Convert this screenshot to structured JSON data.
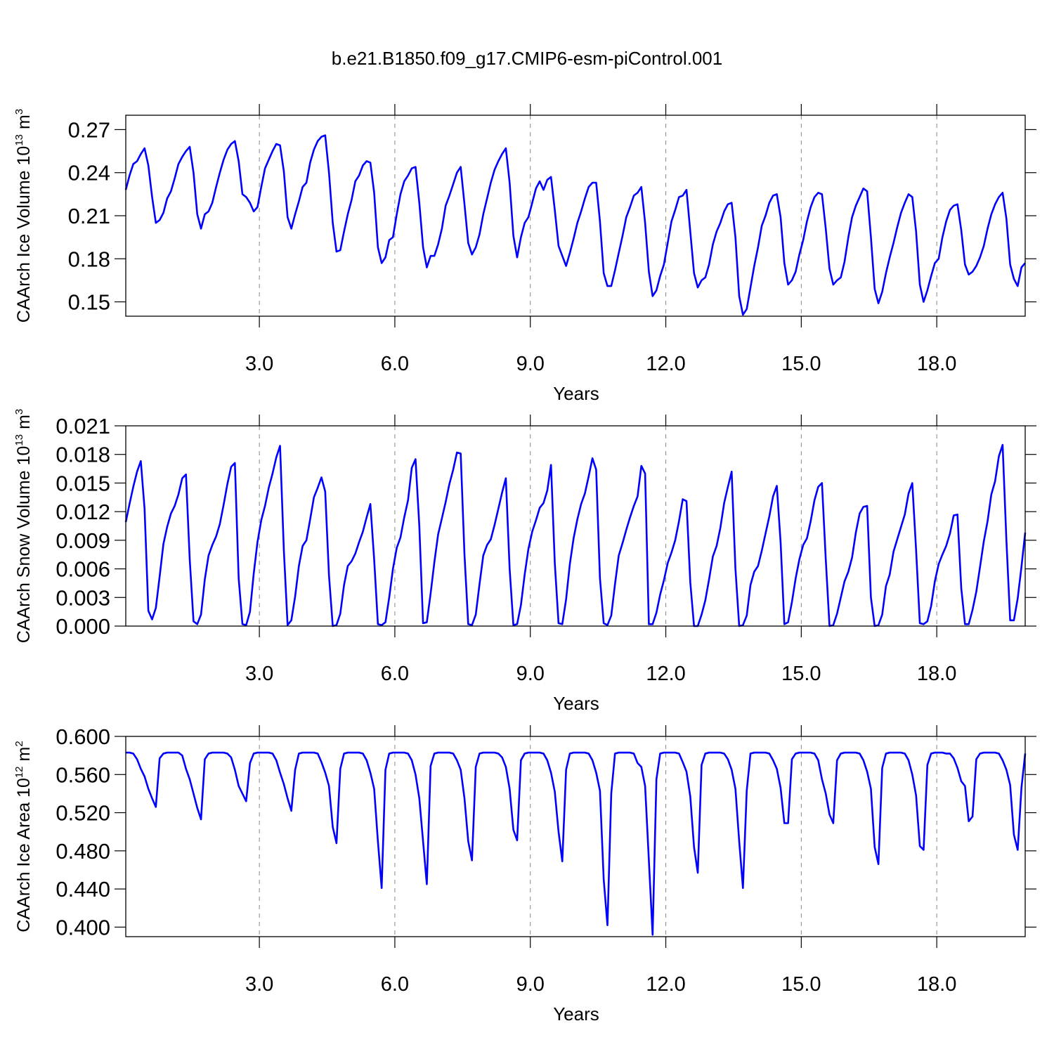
{
  "chart_data": {
    "type": "line",
    "title": "b.e21.B1850.f09_g17.CMIP6-esm-piControl.001",
    "xlabel": "Years",
    "xgrid": true,
    "xlim": [
      0.042,
      19.958
    ],
    "xticks": [
      {
        "value": 3,
        "label": "3.0"
      },
      {
        "value": 6,
        "label": "6.0"
      },
      {
        "value": 9,
        "label": "9.0"
      },
      {
        "value": 12,
        "label": "12.0"
      },
      {
        "value": 15,
        "label": "15.0"
      },
      {
        "value": 18,
        "label": "18.0"
      }
    ],
    "x": [
      0.042,
      0.125,
      0.208,
      0.292,
      0.375,
      0.458,
      0.542,
      0.625,
      0.708,
      0.792,
      0.875,
      0.958,
      1.042,
      1.125,
      1.208,
      1.292,
      1.375,
      1.458,
      1.542,
      1.625,
      1.708,
      1.792,
      1.875,
      1.958,
      2.042,
      2.125,
      2.208,
      2.292,
      2.375,
      2.458,
      2.542,
      2.625,
      2.708,
      2.792,
      2.875,
      2.958,
      3.042,
      3.125,
      3.208,
      3.292,
      3.375,
      3.458,
      3.542,
      3.625,
      3.708,
      3.792,
      3.875,
      3.958,
      4.042,
      4.125,
      4.208,
      4.292,
      4.375,
      4.458,
      4.542,
      4.625,
      4.708,
      4.792,
      4.875,
      4.958,
      5.042,
      5.125,
      5.208,
      5.292,
      5.375,
      5.458,
      5.542,
      5.625,
      5.708,
      5.792,
      5.875,
      5.958,
      6.042,
      6.125,
      6.208,
      6.292,
      6.375,
      6.458,
      6.542,
      6.625,
      6.708,
      6.792,
      6.875,
      6.958,
      7.042,
      7.125,
      7.208,
      7.292,
      7.375,
      7.458,
      7.542,
      7.625,
      7.708,
      7.792,
      7.875,
      7.958,
      8.042,
      8.125,
      8.208,
      8.292,
      8.375,
      8.458,
      8.542,
      8.625,
      8.708,
      8.792,
      8.875,
      8.958,
      9.042,
      9.125,
      9.208,
      9.292,
      9.375,
      9.458,
      9.542,
      9.625,
      9.708,
      9.792,
      9.875,
      9.958,
      10.042,
      10.125,
      10.208,
      10.292,
      10.375,
      10.458,
      10.542,
      10.625,
      10.708,
      10.792,
      10.875,
      10.958,
      11.042,
      11.125,
      11.208,
      11.292,
      11.375,
      11.458,
      11.542,
      11.625,
      11.708,
      11.792,
      11.875,
      11.958,
      12.042,
      12.125,
      12.208,
      12.292,
      12.375,
      12.458,
      12.542,
      12.625,
      12.708,
      12.792,
      12.875,
      12.958,
      13.042,
      13.125,
      13.208,
      13.292,
      13.375,
      13.458,
      13.542,
      13.625,
      13.708,
      13.792,
      13.875,
      13.958,
      14.042,
      14.125,
      14.208,
      14.292,
      14.375,
      14.458,
      14.542,
      14.625,
      14.708,
      14.792,
      14.875,
      14.958,
      15.042,
      15.125,
      15.208,
      15.292,
      15.375,
      15.458,
      15.542,
      15.625,
      15.708,
      15.792,
      15.875,
      15.958,
      16.042,
      16.125,
      16.208,
      16.292,
      16.375,
      16.458,
      16.542,
      16.625,
      16.708,
      16.792,
      16.875,
      16.958,
      17.042,
      17.125,
      17.208,
      17.292,
      17.375,
      17.458,
      17.542,
      17.625,
      17.708,
      17.792,
      17.875,
      17.958,
      18.042,
      18.125,
      18.208,
      18.292,
      18.375,
      18.458,
      18.542,
      18.625,
      18.708,
      18.792,
      18.875,
      18.958,
      19.042,
      19.125,
      19.208,
      19.292,
      19.375,
      19.458,
      19.542,
      19.625,
      19.708,
      19.792,
      19.875,
      19.958
    ],
    "panels": [
      {
        "ylabel": [
          "CAArch Ice Volume 10",
          "13",
          "m",
          "3"
        ],
        "color": "#0000ff",
        "ylim": [
          0.14,
          0.28
        ],
        "yticks": [
          0.15,
          0.18,
          0.21,
          0.24,
          0.27
        ],
        "values": [
          0.228,
          0.238,
          0.246,
          0.248,
          0.253,
          0.257,
          0.245,
          0.223,
          0.205,
          0.207,
          0.212,
          0.222,
          0.227,
          0.236,
          0.246,
          0.251,
          0.255,
          0.258,
          0.24,
          0.211,
          0.201,
          0.211,
          0.213,
          0.219,
          0.23,
          0.24,
          0.249,
          0.256,
          0.26,
          0.262,
          0.248,
          0.225,
          0.223,
          0.219,
          0.213,
          0.216,
          0.23,
          0.243,
          0.249,
          0.255,
          0.26,
          0.259,
          0.241,
          0.209,
          0.201,
          0.211,
          0.22,
          0.23,
          0.233,
          0.247,
          0.256,
          0.262,
          0.265,
          0.266,
          0.24,
          0.205,
          0.185,
          0.186,
          0.199,
          0.211,
          0.221,
          0.234,
          0.238,
          0.245,
          0.248,
          0.247,
          0.226,
          0.188,
          0.177,
          0.181,
          0.193,
          0.195,
          0.211,
          0.225,
          0.234,
          0.238,
          0.243,
          0.244,
          0.219,
          0.188,
          0.174,
          0.182,
          0.182,
          0.19,
          0.201,
          0.217,
          0.224,
          0.232,
          0.24,
          0.244,
          0.218,
          0.191,
          0.183,
          0.188,
          0.197,
          0.211,
          0.222,
          0.233,
          0.242,
          0.248,
          0.253,
          0.257,
          0.233,
          0.196,
          0.181,
          0.195,
          0.205,
          0.209,
          0.219,
          0.229,
          0.234,
          0.228,
          0.235,
          0.237,
          0.214,
          0.189,
          0.182,
          0.175,
          0.184,
          0.194,
          0.205,
          0.213,
          0.222,
          0.23,
          0.233,
          0.233,
          0.206,
          0.17,
          0.161,
          0.161,
          0.172,
          0.184,
          0.196,
          0.209,
          0.216,
          0.224,
          0.226,
          0.23,
          0.205,
          0.171,
          0.154,
          0.158,
          0.168,
          0.176,
          0.191,
          0.206,
          0.214,
          0.223,
          0.224,
          0.228,
          0.199,
          0.17,
          0.16,
          0.165,
          0.167,
          0.176,
          0.19,
          0.199,
          0.205,
          0.213,
          0.218,
          0.219,
          0.195,
          0.154,
          0.141,
          0.145,
          0.16,
          0.175,
          0.188,
          0.203,
          0.21,
          0.219,
          0.224,
          0.225,
          0.209,
          0.177,
          0.162,
          0.165,
          0.171,
          0.183,
          0.193,
          0.206,
          0.216,
          0.223,
          0.226,
          0.225,
          0.201,
          0.173,
          0.162,
          0.165,
          0.167,
          0.178,
          0.195,
          0.209,
          0.217,
          0.223,
          0.229,
          0.227,
          0.195,
          0.159,
          0.149,
          0.157,
          0.17,
          0.181,
          0.191,
          0.202,
          0.212,
          0.219,
          0.225,
          0.223,
          0.199,
          0.162,
          0.15,
          0.158,
          0.168,
          0.177,
          0.18,
          0.195,
          0.206,
          0.214,
          0.217,
          0.218,
          0.2,
          0.176,
          0.169,
          0.171,
          0.175,
          0.181,
          0.189,
          0.201,
          0.211,
          0.218,
          0.223,
          0.226,
          0.208,
          0.176,
          0.166,
          0.161,
          0.174,
          0.177
        ]
      },
      {
        "ylabel": [
          "CAArch Snow Volume 10",
          "13",
          "m",
          "3"
        ],
        "color": "#0000ff",
        "ylim": [
          0,
          0.021
        ],
        "yticks": [
          {
            "value": 0,
            "label": "0.000"
          },
          0.003,
          0.006,
          0.009,
          0.012,
          0.015,
          0.018,
          0.021
        ],
        "values": [
          0.0109,
          0.0128,
          0.0146,
          0.0162,
          0.0173,
          0.0123,
          0.0016,
          0.0007,
          0.0019,
          0.0052,
          0.0086,
          0.0104,
          0.0118,
          0.0126,
          0.0138,
          0.0155,
          0.0159,
          0.007,
          0.0005,
          0.0002,
          0.0012,
          0.0049,
          0.0074,
          0.0085,
          0.0094,
          0.0107,
          0.0127,
          0.0149,
          0.0167,
          0.0171,
          0.005,
          0.0002,
          0.0001,
          0.0015,
          0.0055,
          0.0088,
          0.0111,
          0.0126,
          0.0145,
          0.016,
          0.0177,
          0.0189,
          0.008,
          0.0001,
          0.0006,
          0.0031,
          0.0063,
          0.0084,
          0.009,
          0.0112,
          0.0135,
          0.0145,
          0.0156,
          0.0141,
          0.0053,
          0.0,
          0.0001,
          0.0013,
          0.0043,
          0.0063,
          0.0068,
          0.0076,
          0.0088,
          0.0099,
          0.0114,
          0.0128,
          0.007,
          0.0002,
          0.0001,
          0.0004,
          0.003,
          0.006,
          0.0082,
          0.0093,
          0.0114,
          0.0132,
          0.0166,
          0.0175,
          0.0105,
          0.0003,
          0.0004,
          0.0034,
          0.0067,
          0.0096,
          0.0113,
          0.013,
          0.0149,
          0.0164,
          0.0182,
          0.0181,
          0.0075,
          0.0002,
          0.0001,
          0.0012,
          0.0044,
          0.0074,
          0.0085,
          0.0091,
          0.0106,
          0.0123,
          0.014,
          0.0155,
          0.006,
          0.0001,
          0.0002,
          0.0022,
          0.0054,
          0.0081,
          0.0099,
          0.0111,
          0.0124,
          0.0129,
          0.0142,
          0.0169,
          0.0066,
          0.0003,
          0.0002,
          0.0028,
          0.0065,
          0.0092,
          0.0112,
          0.0128,
          0.0139,
          0.0157,
          0.0176,
          0.0164,
          0.005,
          0.0003,
          0.0001,
          0.0011,
          0.0044,
          0.0074,
          0.0087,
          0.0101,
          0.0114,
          0.0126,
          0.0136,
          0.0168,
          0.016,
          0.0002,
          0.0002,
          0.0014,
          0.0033,
          0.0048,
          0.0066,
          0.0077,
          0.009,
          0.011,
          0.0133,
          0.0131,
          0.0046,
          0.0,
          0.0,
          0.0012,
          0.0027,
          0.0049,
          0.0073,
          0.0084,
          0.0103,
          0.0129,
          0.0146,
          0.0162,
          0.006,
          0.0,
          0.0001,
          0.0011,
          0.0043,
          0.0057,
          0.0063,
          0.0079,
          0.0097,
          0.0115,
          0.0136,
          0.0147,
          0.0088,
          0.0002,
          0.0004,
          0.0025,
          0.005,
          0.007,
          0.0085,
          0.0092,
          0.011,
          0.0132,
          0.0146,
          0.015,
          0.007,
          0.0,
          0.0001,
          0.0013,
          0.003,
          0.0047,
          0.0057,
          0.0072,
          0.0098,
          0.0118,
          0.0125,
          0.0126,
          0.003,
          0.0,
          0.0001,
          0.0012,
          0.0042,
          0.0054,
          0.0078,
          0.0091,
          0.0104,
          0.0117,
          0.0139,
          0.015,
          0.008,
          0.0003,
          0.0002,
          0.0005,
          0.0021,
          0.0047,
          0.0065,
          0.0075,
          0.0084,
          0.0097,
          0.0116,
          0.0117,
          0.004,
          0.0002,
          0.0002,
          0.0017,
          0.0036,
          0.0062,
          0.0089,
          0.011,
          0.0138,
          0.0152,
          0.0178,
          0.019,
          0.009,
          0.0006,
          0.0006,
          0.0029,
          0.0062,
          0.0098
        ]
      },
      {
        "ylabel": [
          "CAArch Ice Area 10",
          "12",
          "m",
          "2"
        ],
        "color": "#0000ff",
        "ylim": [
          0.39,
          0.6
        ],
        "yticks": [
          {
            "value": 0.4,
            "label": "0.400"
          },
          {
            "value": 0.44,
            "label": "0.440"
          },
          {
            "value": 0.48,
            "label": "0.480"
          },
          {
            "value": 0.52,
            "label": "0.520"
          },
          {
            "value": 0.56,
            "label": "0.560"
          },
          {
            "value": 0.6,
            "label": "0.600"
          }
        ],
        "values": [
          0.583,
          0.583,
          0.582,
          0.576,
          0.566,
          0.558,
          0.545,
          0.535,
          0.526,
          0.577,
          0.582,
          0.583,
          0.583,
          0.583,
          0.583,
          0.58,
          0.566,
          0.555,
          0.54,
          0.525,
          0.513,
          0.576,
          0.582,
          0.583,
          0.583,
          0.583,
          0.583,
          0.582,
          0.578,
          0.565,
          0.548,
          0.54,
          0.532,
          0.572,
          0.582,
          0.583,
          0.583,
          0.583,
          0.583,
          0.582,
          0.575,
          0.562,
          0.55,
          0.535,
          0.522,
          0.565,
          0.582,
          0.583,
          0.583,
          0.583,
          0.583,
          0.582,
          0.573,
          0.562,
          0.548,
          0.505,
          0.488,
          0.566,
          0.582,
          0.583,
          0.583,
          0.583,
          0.583,
          0.582,
          0.575,
          0.562,
          0.545,
          0.49,
          0.441,
          0.565,
          0.582,
          0.583,
          0.583,
          0.583,
          0.583,
          0.582,
          0.575,
          0.56,
          0.535,
          0.49,
          0.445,
          0.569,
          0.582,
          0.583,
          0.583,
          0.583,
          0.583,
          0.582,
          0.575,
          0.565,
          0.535,
          0.49,
          0.47,
          0.568,
          0.582,
          0.583,
          0.583,
          0.583,
          0.583,
          0.582,
          0.578,
          0.568,
          0.545,
          0.502,
          0.491,
          0.575,
          0.582,
          0.583,
          0.583,
          0.583,
          0.583,
          0.582,
          0.575,
          0.562,
          0.542,
          0.5,
          0.469,
          0.565,
          0.582,
          0.583,
          0.583,
          0.583,
          0.583,
          0.582,
          0.575,
          0.562,
          0.543,
          0.45,
          0.402,
          0.54,
          0.582,
          0.583,
          0.583,
          0.583,
          0.583,
          0.582,
          0.572,
          0.568,
          0.548,
          0.47,
          0.392,
          0.555,
          0.582,
          0.583,
          0.583,
          0.583,
          0.583,
          0.582,
          0.573,
          0.563,
          0.537,
          0.484,
          0.457,
          0.57,
          0.582,
          0.583,
          0.583,
          0.583,
          0.583,
          0.582,
          0.576,
          0.565,
          0.545,
          0.49,
          0.441,
          0.543,
          0.582,
          0.583,
          0.583,
          0.583,
          0.583,
          0.582,
          0.575,
          0.566,
          0.546,
          0.509,
          0.509,
          0.576,
          0.582,
          0.583,
          0.583,
          0.583,
          0.583,
          0.582,
          0.575,
          0.555,
          0.54,
          0.518,
          0.509,
          0.575,
          0.582,
          0.583,
          0.583,
          0.583,
          0.583,
          0.582,
          0.575,
          0.563,
          0.545,
          0.484,
          0.466,
          0.567,
          0.582,
          0.583,
          0.583,
          0.583,
          0.583,
          0.582,
          0.575,
          0.56,
          0.538,
          0.485,
          0.481,
          0.57,
          0.582,
          0.583,
          0.583,
          0.583,
          0.582,
          0.582,
          0.577,
          0.567,
          0.553,
          0.548,
          0.511,
          0.516,
          0.576,
          0.582,
          0.583,
          0.583,
          0.583,
          0.583,
          0.582,
          0.575,
          0.565,
          0.549,
          0.497,
          0.481,
          0.546,
          0.582
        ]
      }
    ]
  }
}
